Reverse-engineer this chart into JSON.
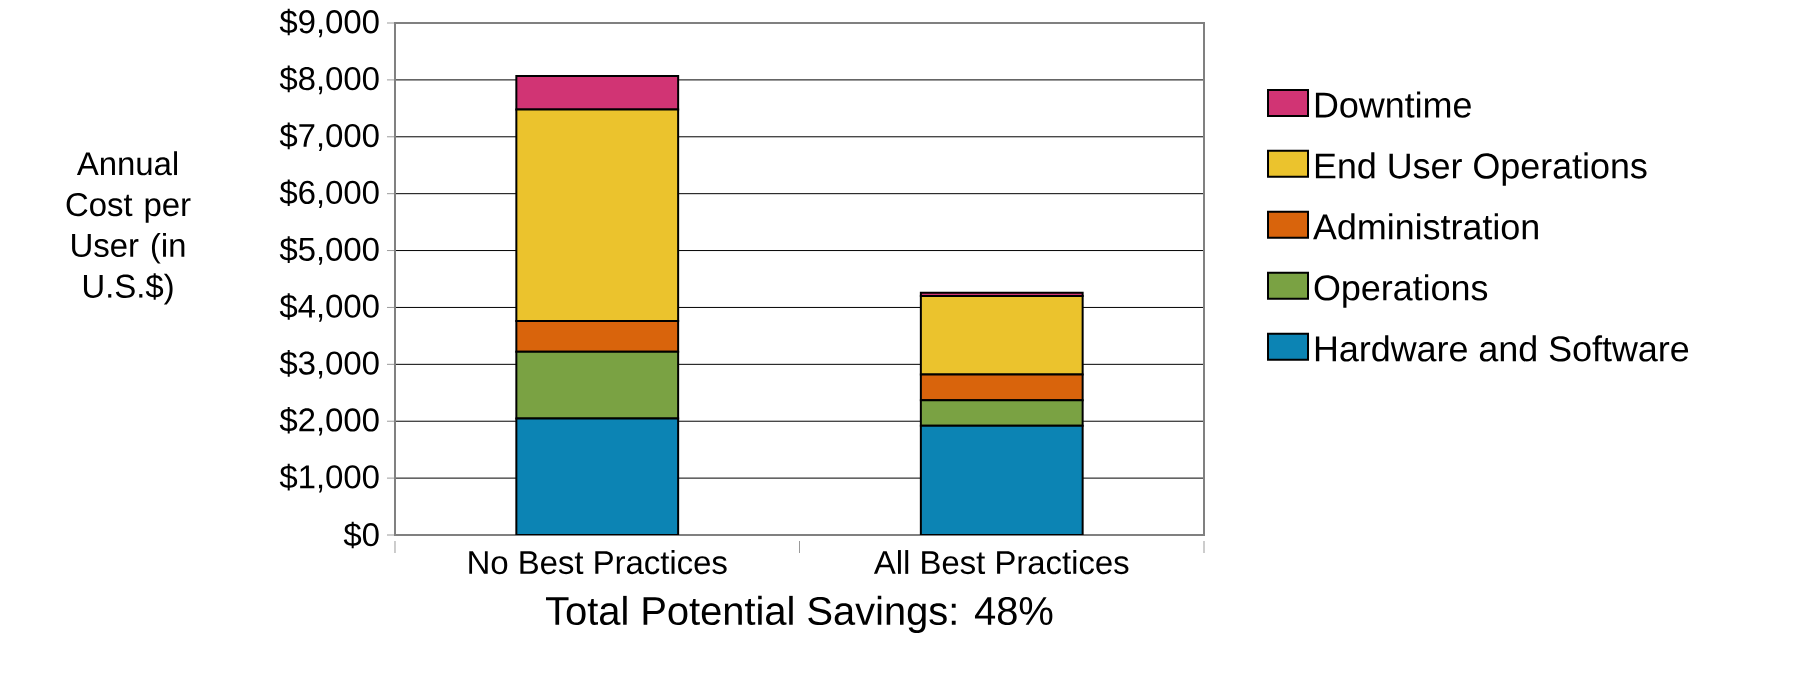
{
  "chart_data": {
    "type": "bar",
    "stacked": true,
    "xlabel": "Total Potential Savings: 48%",
    "ylabel": "Annual Cost per User (in U.S.$)",
    "categories": [
      "No Best Practices",
      "All Best Practices"
    ],
    "series": [
      {
        "name": "Hardware and Software",
        "color": "#0c84b4",
        "values": [
          2050,
          1920
        ]
      },
      {
        "name": "Operations",
        "color": "#7aa243",
        "values": [
          1170,
          450
        ]
      },
      {
        "name": "Administration",
        "color": "#d9640c",
        "values": [
          540,
          450
        ]
      },
      {
        "name": "End User Operations",
        "color": "#ebc32d",
        "values": [
          3720,
          1380
        ]
      },
      {
        "name": "Downtime",
        "color": "#d13474",
        "values": [
          590,
          60
        ]
      }
    ],
    "ylim": [
      0,
      9000
    ],
    "yticks": [
      {
        "value": 0,
        "label": "$0"
      },
      {
        "value": 1000,
        "label": "$1,000"
      },
      {
        "value": 2000,
        "label": "$2,000"
      },
      {
        "value": 3000,
        "label": "$3,000"
      },
      {
        "value": 4000,
        "label": "$4,000"
      },
      {
        "value": 5000,
        "label": "$5,000"
      },
      {
        "value": 6000,
        "label": "$6,000"
      },
      {
        "value": 7000,
        "label": "$7,000"
      },
      {
        "value": 8000,
        "label": "$8,000"
      },
      {
        "value": 9000,
        "label": "$9,000"
      }
    ],
    "grid": "y",
    "legend": "right"
  }
}
